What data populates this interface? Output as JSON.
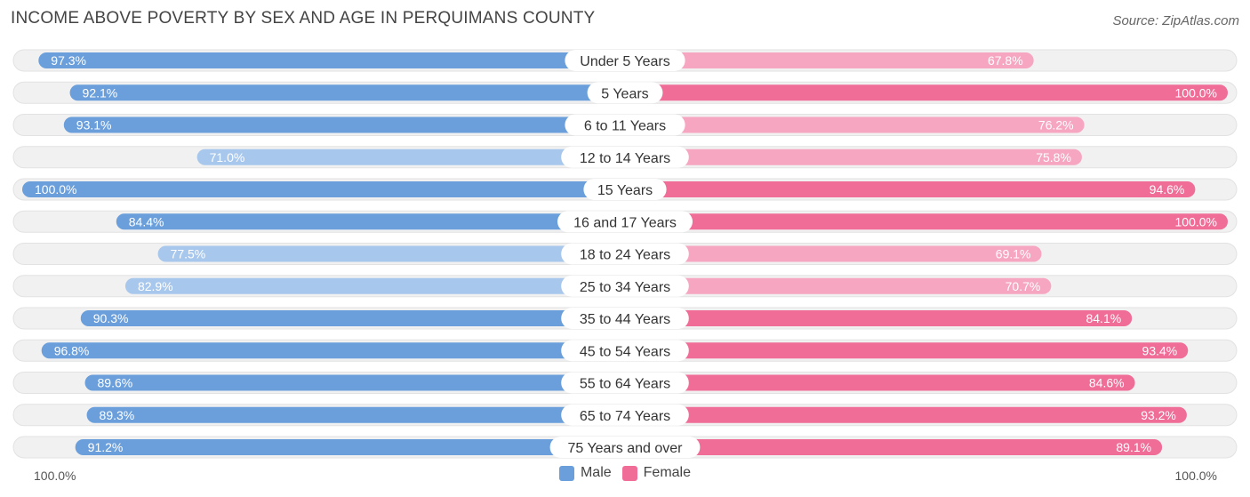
{
  "header": {
    "title": "INCOME ABOVE POVERTY BY SEX AND AGE IN PERQUIMANS COUNTY",
    "source": "Source: ZipAtlas.com"
  },
  "axis": {
    "left_label": "100.0%",
    "right_label": "100.0%"
  },
  "legend": {
    "male_label": "Male",
    "female_label": "Female"
  },
  "colors": {
    "male_strong": "#6a9fdc",
    "male_light": "#a8c7ec",
    "female_strong": "#f06d98",
    "female_light": "#f6a6c1",
    "track": "#f1f1f1"
  },
  "chart_data": {
    "type": "bar",
    "title": "INCOME ABOVE POVERTY BY SEX AND AGE IN PERQUIMANS COUNTY",
    "xlim": [
      -100,
      100
    ],
    "legend_position": "bottom-center",
    "categories": [
      "Under 5 Years",
      "5 Years",
      "6 to 11 Years",
      "12 to 14 Years",
      "15 Years",
      "16 and 17 Years",
      "18 to 24 Years",
      "25 to 34 Years",
      "35 to 44 Years",
      "45 to 54 Years",
      "55 to 64 Years",
      "65 to 74 Years",
      "75 Years and over"
    ],
    "series": [
      {
        "name": "Male",
        "values": [
          97.3,
          92.1,
          93.1,
          71.0,
          100.0,
          84.4,
          77.5,
          82.9,
          90.3,
          96.8,
          89.6,
          89.3,
          91.2
        ],
        "labels": [
          "97.3%",
          "92.1%",
          "93.1%",
          "71.0%",
          "100.0%",
          "84.4%",
          "77.5%",
          "82.9%",
          "90.3%",
          "96.8%",
          "89.6%",
          "89.3%",
          "91.2%"
        ]
      },
      {
        "name": "Female",
        "values": [
          67.8,
          100.0,
          76.2,
          75.8,
          94.6,
          100.0,
          69.1,
          70.7,
          84.1,
          93.4,
          84.6,
          93.2,
          89.1
        ],
        "labels": [
          "67.8%",
          "100.0%",
          "76.2%",
          "75.8%",
          "94.6%",
          "100.0%",
          "69.1%",
          "70.7%",
          "84.1%",
          "93.4%",
          "84.6%",
          "93.2%",
          "89.1%"
        ]
      }
    ]
  }
}
